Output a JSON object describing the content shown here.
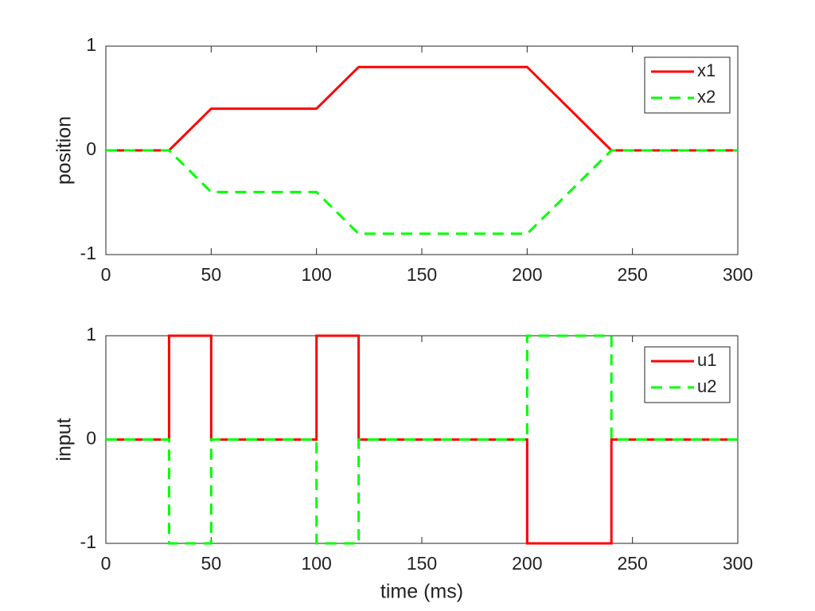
{
  "chart_data": [
    {
      "type": "line",
      "ylabel": "position",
      "x": [
        0,
        30,
        50,
        100,
        120,
        200,
        240,
        300
      ],
      "series": [
        {
          "name": "x1",
          "color": "#ff0000",
          "line_style": "solid",
          "values": [
            0,
            0,
            0.4,
            0.4,
            0.8,
            0.8,
            0,
            0
          ]
        },
        {
          "name": "x2",
          "color": "#00ff00",
          "line_style": "dashed",
          "values": [
            0,
            0,
            -0.4,
            -0.4,
            -0.8,
            -0.8,
            0,
            0
          ]
        }
      ],
      "xlim": [
        0,
        300
      ],
      "xticks": [
        0,
        50,
        100,
        150,
        200,
        250,
        300
      ],
      "ylim": [
        -1,
        1
      ],
      "yticks": [
        -1,
        0,
        1
      ],
      "legend": "northeast"
    },
    {
      "type": "line",
      "xlabel": "time (ms)",
      "ylabel": "input",
      "x": [
        0,
        30,
        30,
        50,
        50,
        100,
        100,
        120,
        120,
        200,
        200,
        240,
        240,
        300
      ],
      "series": [
        {
          "name": "u1",
          "color": "#ff0000",
          "line_style": "solid",
          "values": [
            0,
            0,
            1,
            1,
            0,
            0,
            1,
            1,
            0,
            0,
            -1,
            -1,
            0,
            0
          ]
        },
        {
          "name": "u2",
          "color": "#00ff00",
          "line_style": "dashed",
          "values": [
            0,
            0,
            -1,
            -1,
            0,
            0,
            -1,
            -1,
            0,
            0,
            1,
            1,
            0,
            0
          ]
        }
      ],
      "xlim": [
        0,
        300
      ],
      "xticks": [
        0,
        50,
        100,
        150,
        200,
        250,
        300
      ],
      "ylim": [
        -1,
        1
      ],
      "yticks": [
        -1,
        0,
        1
      ],
      "legend": "northeast"
    }
  ]
}
